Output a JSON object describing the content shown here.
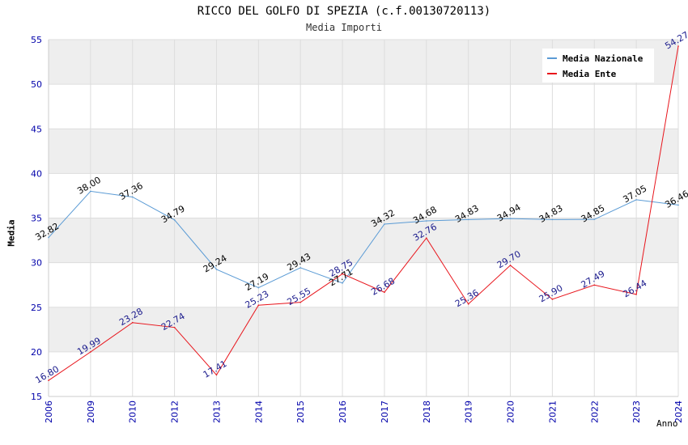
{
  "chart_data": {
    "type": "line",
    "title": "RICCO DEL GOLFO DI SPEZIA (c.f.00130720113)",
    "subtitle": "Media Importi",
    "xlabel": "Anno",
    "ylabel": "Media",
    "ylim": [
      15,
      55
    ],
    "yticks": [
      15,
      20,
      25,
      30,
      35,
      40,
      45,
      50,
      55
    ],
    "categories": [
      "2006",
      "2009",
      "2010",
      "2012",
      "2013",
      "2014",
      "2015",
      "2016",
      "2017",
      "2018",
      "2019",
      "2020",
      "2021",
      "2022",
      "2023",
      "2024"
    ],
    "series": [
      {
        "name": "Media Nazionale",
        "color": "#5b9bd5",
        "label_color": "#000000",
        "values": [
          32.82,
          38.0,
          37.36,
          34.79,
          29.24,
          27.19,
          29.43,
          27.71,
          34.32,
          34.68,
          34.83,
          34.94,
          34.83,
          34.85,
          37.05,
          36.46
        ],
        "labels": [
          "32.82",
          "38.00",
          "37.36",
          "34.79",
          "29.24",
          "27.19",
          "29.43",
          "27.71",
          "34.32",
          "34.68",
          "34.83",
          "34.94",
          "34.83",
          "34.85",
          "37.05",
          "36.46"
        ]
      },
      {
        "name": "Media Ente",
        "color": "#e8141b",
        "label_color": "#1a1a8c",
        "values": [
          16.8,
          19.99,
          23.28,
          22.74,
          17.41,
          25.23,
          25.55,
          28.75,
          26.68,
          32.76,
          25.36,
          29.7,
          25.9,
          27.49,
          26.44,
          54.27
        ],
        "labels": [
          "16.80",
          "19.99",
          "23.28",
          "22.74",
          "17.41",
          "25.23",
          "25.55",
          "28.75",
          "26.68",
          "32.76",
          "25.36",
          "29.70",
          "25.90",
          "27.49",
          "26.44",
          "54.27"
        ]
      }
    ],
    "legend_position": "top-right",
    "grid": true
  },
  "colors": {
    "band": "#eeeeee",
    "grid": "#dddddd",
    "axis": "#cccccc",
    "tick_label": "#0000aa"
  }
}
